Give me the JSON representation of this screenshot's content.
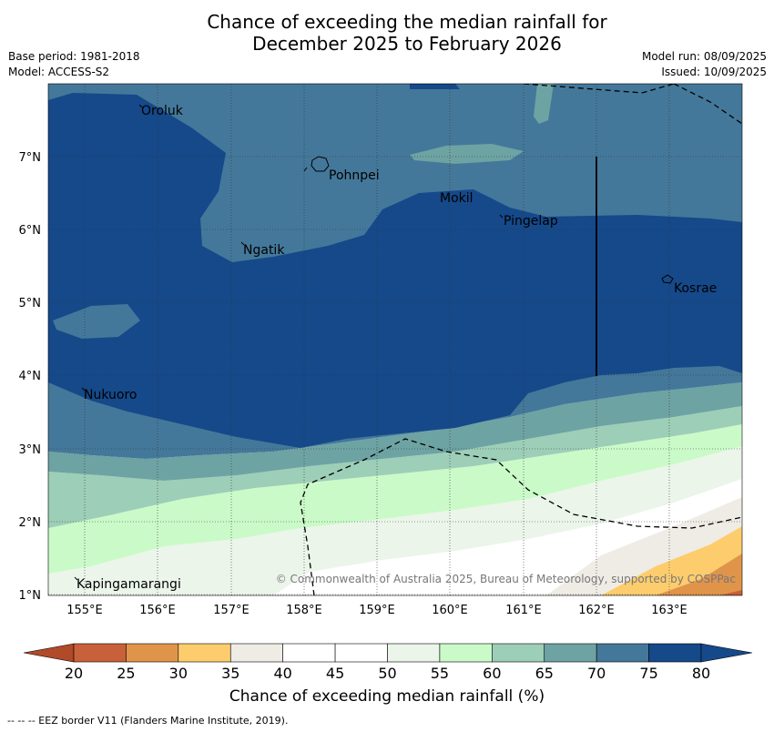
{
  "title": {
    "line1": "Chance of exceeding the median rainfall for",
    "line2": "December 2025 to February 2026"
  },
  "meta": {
    "base_period": "Base period: 1981-2018",
    "model": "Model: ACCESS-S2",
    "model_run": "Model run: 08/09/2025",
    "issued": "Issued: 10/09/2025"
  },
  "map": {
    "lon_labels": [
      "155°E",
      "156°E",
      "157°E",
      "158°E",
      "159°E",
      "160°E",
      "161°E",
      "162°E",
      "163°E"
    ],
    "lat_labels": [
      "7°N",
      "6°N",
      "5°N",
      "4°N",
      "3°N",
      "2°N",
      "1°N"
    ],
    "places": [
      {
        "name": "Oroluk"
      },
      {
        "name": "Pohnpei"
      },
      {
        "name": "Mokil"
      },
      {
        "name": "Pingelap"
      },
      {
        "name": "Ngatik"
      },
      {
        "name": "Kosrae"
      },
      {
        "name": "Nukuoro"
      },
      {
        "name": "Kapingamarangi"
      }
    ],
    "copyright": "© Commonwealth of Australia 2025, Bureau of Meteorology, supported by COSPPac"
  },
  "legend": {
    "ticks": [
      "20",
      "25",
      "30",
      "35",
      "40",
      "45",
      "50",
      "55",
      "60",
      "65",
      "70",
      "75",
      "80"
    ],
    "colors": [
      "#b04a28",
      "#c8613a",
      "#e0944a",
      "#fdcd6d",
      "#efece6",
      "#ffffff",
      "#ffffff",
      "#ebf5ea",
      "#cafac8",
      "#9dceb7",
      "#6ea3a3",
      "#44789a",
      "#15498a"
    ],
    "label": "Chance of exceeding median rainfall (%)"
  },
  "footnote": "-- -- -- EEZ border V11 (Flanders Marine Institute, 2019)."
}
